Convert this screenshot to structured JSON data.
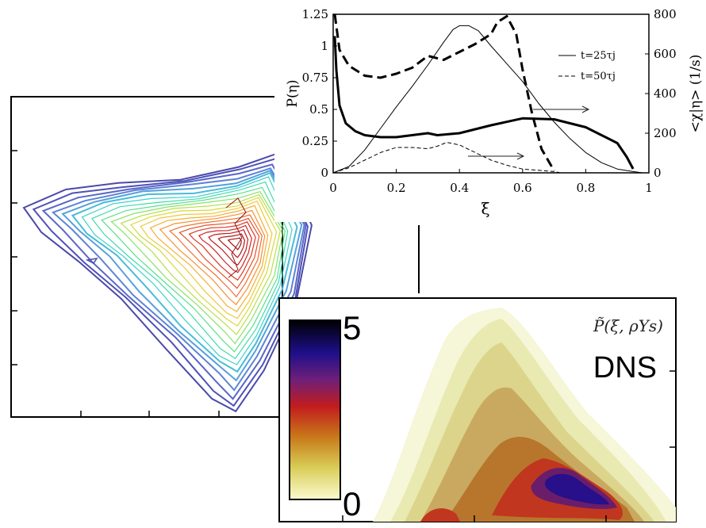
{
  "chart_data": [
    {
      "type": "line",
      "panel": "top-right",
      "xlabel": "ξ",
      "ylabel": "P(η)",
      "ylabel_right": "<χ|η> (1/s)",
      "xlim": [
        0,
        1
      ],
      "ylim": [
        0,
        1.25
      ],
      "ylim_right": [
        0,
        800
      ],
      "x_ticks": [
        "0",
        "0.2",
        "0.4",
        "0.6",
        "0.8",
        "1"
      ],
      "y_ticks": [
        "0",
        "0.25",
        "0.5",
        "0.75",
        "1",
        "1.25"
      ],
      "y_ticks_right": [
        "0",
        "200",
        "400",
        "600",
        "800"
      ],
      "legend": [
        "t=25τj",
        "t=50τj"
      ],
      "legend_position": "top-right",
      "series": [
        {
          "name": "t=25τj",
          "axis": "left",
          "x": [
            0,
            0.05,
            0.1,
            0.15,
            0.2,
            0.25,
            0.3,
            0.35,
            0.38,
            0.4,
            0.43,
            0.46,
            0.5,
            0.55,
            0.6,
            0.65,
            0.7,
            0.75,
            0.8,
            0.85,
            0.9,
            0.95,
            0.98
          ],
          "y": [
            0,
            0.05,
            0.18,
            0.35,
            0.52,
            0.68,
            0.85,
            1.03,
            1.13,
            1.16,
            1.16,
            1.12,
            1.0,
            0.86,
            0.72,
            0.55,
            0.4,
            0.27,
            0.16,
            0.08,
            0.03,
            0.01,
            0
          ]
        },
        {
          "name": "t=50τj",
          "axis": "left",
          "x": [
            0,
            0.05,
            0.1,
            0.15,
            0.2,
            0.25,
            0.3,
            0.33,
            0.36,
            0.4,
            0.45,
            0.5,
            0.55,
            0.6,
            0.65,
            0.7,
            0.72
          ],
          "y": [
            0,
            0.04,
            0.1,
            0.16,
            0.2,
            0.2,
            0.19,
            0.21,
            0.24,
            0.22,
            0.16,
            0.1,
            0.06,
            0.03,
            0.02,
            0.01,
            0
          ]
        },
        {
          "name": "<χ|η> t=25τj",
          "axis": "right",
          "x": [
            0.005,
            0.01,
            0.02,
            0.04,
            0.07,
            0.1,
            0.15,
            0.2,
            0.25,
            0.3,
            0.33,
            0.4,
            0.5,
            0.6,
            0.7,
            0.8,
            0.85,
            0.9,
            0.93,
            0.95
          ],
          "y": [
            690,
            520,
            340,
            250,
            210,
            190,
            180,
            180,
            190,
            200,
            190,
            200,
            240,
            275,
            270,
            230,
            190,
            150,
            80,
            20
          ]
        },
        {
          "name": "<χ|η> t=50τj",
          "axis": "right",
          "x": [
            0.005,
            0.02,
            0.05,
            0.1,
            0.15,
            0.2,
            0.25,
            0.3,
            0.35,
            0.4,
            0.45,
            0.5,
            0.52,
            0.55,
            0.58,
            0.6,
            0.63,
            0.66,
            0.7
          ],
          "y": [
            800,
            620,
            540,
            490,
            480,
            500,
            530,
            590,
            570,
            610,
            650,
            700,
            760,
            790,
            700,
            520,
            300,
            120,
            10
          ]
        }
      ]
    },
    {
      "type": "heatmap",
      "panel": "left",
      "title": "",
      "style": "contour lines"
    },
    {
      "type": "heatmap",
      "panel": "bottom-right",
      "title": "P̃(ξ, ρYs)",
      "annotation": "DNS",
      "colorbar_range": [
        0,
        5
      ],
      "colorbar_labels": [
        "5",
        "0"
      ]
    }
  ]
}
